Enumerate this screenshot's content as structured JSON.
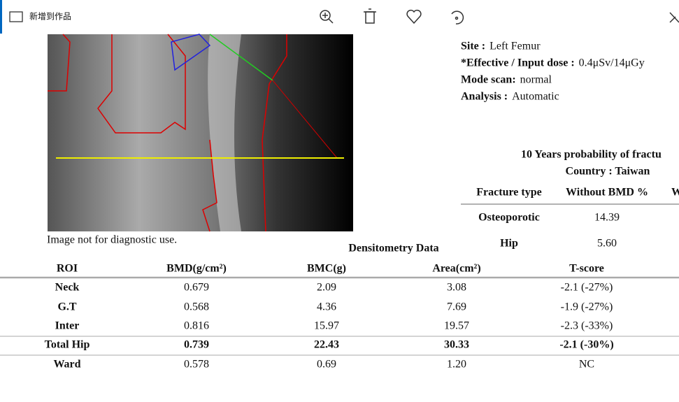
{
  "toolbar": {
    "add_to_album": "新增到作品"
  },
  "report": {
    "info": [
      {
        "label": "Site :",
        "value": "Left Femur"
      },
      {
        "label": "*Effective / Input dose :",
        "value": "0.4μSv/14μGy"
      },
      {
        "label": "Mode scan:",
        "value": "normal"
      },
      {
        "label": "Analysis :",
        "value": "Automatic"
      }
    ],
    "image_note": "Image not for diagnostic use.",
    "fracture": {
      "title": "10 Years probability of fractu",
      "country": "Country : Taiwan",
      "headers": [
        "Fracture type",
        "Without BMD %",
        "W"
      ],
      "rows": [
        [
          "Osteoporotic",
          "14.39"
        ],
        [
          "Hip",
          "5.60"
        ]
      ]
    },
    "densitometry": {
      "title": "Densitometry Data",
      "headers": [
        "ROI",
        "BMD(g/cm²)",
        "BMC(g)",
        "Area(cm²)",
        "T-score"
      ],
      "rows": [
        [
          "Neck",
          "0.679",
          "2.09",
          "3.08",
          "-2.1 (-27%)"
        ],
        [
          "G.T",
          "0.568",
          "4.36",
          "7.69",
          "-1.9 (-27%)"
        ],
        [
          "Inter",
          "0.816",
          "15.97",
          "19.57",
          "-2.3 (-33%)"
        ],
        [
          "Total Hip",
          "0.739",
          "22.43",
          "30.33",
          "-2.1 (-30%)"
        ],
        [
          "Ward",
          "0.578",
          "0.69",
          "1.20",
          "NC"
        ]
      ]
    }
  }
}
